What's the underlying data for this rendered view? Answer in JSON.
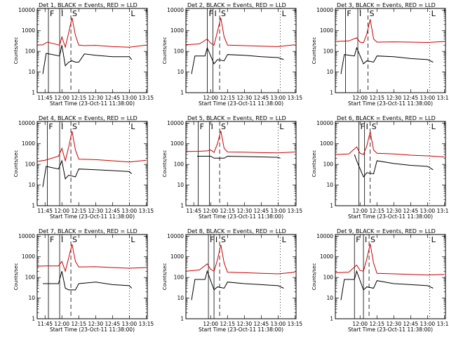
{
  "figure": {
    "ylabel": "Counts/sec",
    "xlabel": "Start Time (23-Oct-11 11:38:00)"
  },
  "colors": {
    "events": "#000000",
    "lld": "#cc0000"
  },
  "chart_data": [
    {
      "type": "line",
      "title": "Det 1, BLACK = Events, RED = LLD",
      "xlabel": "Start Time (23-Oct-11 11:38:00)",
      "ylabel": "Counts/sec",
      "x_ticks": [
        "11:45",
        "12:00",
        "12:15",
        "12:30",
        "12:45",
        "13:00",
        "13:15"
      ],
      "y_ticks": [
        "1",
        "10",
        "100",
        "1000",
        "10000"
      ],
      "ylim": [
        1,
        12000
      ],
      "y_scale": "log",
      "interval_labels": [
        {
          "text": "F",
          "time": "11:48"
        },
        {
          "text": "I",
          "time": "11:58"
        },
        {
          "text": "S",
          "time": "12:08"
        },
        {
          "text": "L",
          "time": "13:00"
        }
      ],
      "series": [
        {
          "name": "Events",
          "x": [
            "11:43",
            "11:46",
            "11:58",
            "12:00",
            "12:03",
            "12:06",
            "12:09",
            "12:12",
            "12:15",
            "12:20",
            "12:30",
            "12:45",
            "13:00",
            "13:02"
          ],
          "y": [
            8,
            80,
            60,
            200,
            20,
            30,
            35,
            30,
            30,
            75,
            65,
            55,
            55,
            40
          ]
        },
        {
          "name": "LLD",
          "x": [
            "11:38",
            "11:43",
            "11:47",
            "11:58",
            "12:00",
            "12:03",
            "12:06",
            "12:09",
            "12:12",
            "12:15",
            "12:20",
            "12:30",
            "12:45",
            "13:00",
            "13:15"
          ],
          "y": [
            200,
            210,
            280,
            200,
            500,
            160,
            800,
            4200,
            600,
            200,
            190,
            195,
            170,
            160,
            200
          ]
        }
      ]
    },
    {
      "type": "line",
      "title": "Det 2, BLACK = Events, RED = LLD",
      "xlabel": "Start Time (23-Oct-11 11:38:00)",
      "ylabel": "Counts/sec",
      "x_ticks": [
        "12:00",
        "12:15",
        "12:30",
        "12:45",
        "13:00",
        "13:15"
      ],
      "y_ticks": [
        "1",
        "10",
        "100",
        "1000",
        "10000"
      ],
      "ylim": [
        1,
        12000
      ],
      "y_scale": "log",
      "interval_labels": [
        {
          "text": "F",
          "time": "11:57"
        },
        {
          "text": "I",
          "time": "12:02"
        },
        {
          "text": "S",
          "time": "12:08"
        },
        {
          "text": "L",
          "time": "13:02"
        }
      ],
      "series": [
        {
          "name": "Events",
          "x": [
            "11:43",
            "11:46",
            "11:55",
            "11:57",
            "12:03",
            "12:06",
            "12:12",
            "12:15",
            "12:30",
            "12:45",
            "13:00",
            "13:05"
          ],
          "y": [
            8,
            60,
            60,
            150,
            25,
            40,
            35,
            70,
            65,
            55,
            50,
            40
          ]
        },
        {
          "name": "LLD",
          "x": [
            "11:38",
            "11:50",
            "11:57",
            "12:00",
            "12:03",
            "12:06",
            "12:09",
            "12:12",
            "12:15",
            "12:30",
            "12:45",
            "13:00",
            "13:15"
          ],
          "y": [
            210,
            230,
            400,
            250,
            200,
            900,
            4200,
            500,
            200,
            190,
            180,
            170,
            210
          ]
        }
      ]
    },
    {
      "type": "line",
      "title": "Det 3, BLACK = Events, RED = LLD",
      "xlabel": "Start Time (23-Oct-11 11:38:00)",
      "ylabel": "Counts/sec",
      "x_ticks": [
        "12:00",
        "12:15",
        "12:30",
        "12:45",
        "13:00",
        "13:15"
      ],
      "y_ticks": [
        "1",
        "10",
        "100",
        "1000",
        "10000"
      ],
      "ylim": [
        1,
        12000
      ],
      "y_scale": "log",
      "interval_labels": [
        {
          "text": "F",
          "time": "11:47"
        },
        {
          "text": "I",
          "time": "11:58"
        },
        {
          "text": "S",
          "time": "12:07"
        },
        {
          "text": "L",
          "time": "13:02"
        }
      ],
      "series": [
        {
          "name": "Events",
          "x": [
            "11:43",
            "11:46",
            "11:55",
            "11:57",
            "12:03",
            "12:06",
            "12:12",
            "12:15",
            "12:30",
            "12:45",
            "13:00",
            "13:05"
          ],
          "y": [
            8,
            70,
            60,
            150,
            25,
            35,
            30,
            60,
            55,
            45,
            40,
            30
          ]
        },
        {
          "name": "LLD",
          "x": [
            "11:38",
            "11:50",
            "11:57",
            "12:00",
            "12:03",
            "12:06",
            "12:09",
            "12:12",
            "12:15",
            "12:30",
            "12:45",
            "13:00",
            "13:15"
          ],
          "y": [
            300,
            320,
            450,
            280,
            260,
            700,
            3600,
            400,
            280,
            290,
            280,
            270,
            300
          ]
        }
      ]
    },
    {
      "type": "line",
      "title": "Det 4, BLACK = Events, RED = LLD",
      "xlabel": "Start Time (23-Oct-11 11:38:00)",
      "ylabel": "Counts/sec",
      "x_ticks": [
        "11:45",
        "12:00",
        "12:15",
        "12:30",
        "12:45",
        "13:00",
        "13:15"
      ],
      "y_ticks": [
        "1",
        "10",
        "100",
        "1000",
        "10000"
      ],
      "ylim": [
        1,
        12000
      ],
      "y_scale": "log",
      "interval_labels": [
        {
          "text": "F",
          "time": "11:47"
        },
        {
          "text": "I",
          "time": "11:58"
        },
        {
          "text": "S",
          "time": "12:08"
        },
        {
          "text": "L",
          "time": "13:00"
        }
      ],
      "series": [
        {
          "name": "Events",
          "x": [
            "11:43",
            "11:46",
            "11:57",
            "12:00",
            "12:03",
            "12:06",
            "12:12",
            "12:15",
            "12:30",
            "12:45",
            "13:00",
            "13:02"
          ],
          "y": [
            8,
            80,
            60,
            150,
            20,
            30,
            25,
            60,
            55,
            50,
            45,
            35
          ]
        },
        {
          "name": "LLD",
          "x": [
            "11:38",
            "11:45",
            "11:57",
            "12:00",
            "12:03",
            "12:06",
            "12:09",
            "12:12",
            "12:15",
            "12:30",
            "12:45",
            "13:00",
            "13:15"
          ],
          "y": [
            140,
            160,
            250,
            600,
            150,
            700,
            4000,
            500,
            180,
            170,
            150,
            130,
            160
          ]
        }
      ]
    },
    {
      "type": "line",
      "title": "Det 5, BLACK = Events, RED = LLD",
      "xlabel": "Start Time (23-Oct-11 11:38:00)",
      "ylabel": "Counts/sec",
      "x_ticks": [
        "11:45",
        "12:00",
        "12:15",
        "12:30",
        "12:45",
        "13:00",
        "13:15"
      ],
      "y_ticks": [
        "1",
        "10",
        "100",
        "1000",
        "10000"
      ],
      "ylim": [
        1,
        12000
      ],
      "y_scale": "log",
      "interval_labels": [
        {
          "text": "F",
          "time": "11:49"
        },
        {
          "text": "I",
          "time": "11:59"
        },
        {
          "text": "S",
          "time": "12:08"
        },
        {
          "text": "L",
          "time": "13:00"
        }
      ],
      "series": [
        {
          "name": "Events",
          "x": [
            "11:48",
            "11:57",
            "12:00",
            "12:03",
            "12:06",
            "12:12",
            "12:15",
            "12:30",
            "12:45",
            "13:00",
            "13:02"
          ],
          "y": [
            250,
            250,
            250,
            200,
            200,
            200,
            250,
            240,
            230,
            220,
            200
          ]
        },
        {
          "name": "LLD",
          "x": [
            "11:38",
            "11:50",
            "11:57",
            "12:00",
            "12:03",
            "12:06",
            "12:09",
            "12:12",
            "12:15",
            "12:30",
            "12:45",
            "13:00",
            "13:15"
          ],
          "y": [
            420,
            430,
            450,
            500,
            380,
            1000,
            4200,
            600,
            400,
            390,
            370,
            360,
            400
          ]
        }
      ]
    },
    {
      "type": "line",
      "title": "Det 6, BLACK = Events, RED = LLD",
      "xlabel": "Start Time (23-Oct-11 11:38:00)",
      "ylabel": "Counts/sec",
      "x_ticks": [
        "12:00",
        "12:15",
        "12:30",
        "12:45",
        "13:00",
        "13:15"
      ],
      "y_ticks": [
        "1",
        "10",
        "100",
        "1000",
        "10000"
      ],
      "ylim": [
        1,
        12000
      ],
      "y_scale": "log",
      "interval_labels": [
        {
          "text": "F",
          "time": "11:59"
        },
        {
          "text": "I",
          "time": "12:04"
        },
        {
          "text": "S",
          "time": "12:09"
        },
        {
          "text": "L",
          "time": "13:02"
        }
      ],
      "series": [
        {
          "name": "Events",
          "x": [
            "11:55",
            "11:57",
            "12:03",
            "12:06",
            "12:12",
            "12:15",
            "12:30",
            "12:45",
            "13:00",
            "13:05"
          ],
          "y": [
            300,
            150,
            25,
            40,
            35,
            150,
            110,
            90,
            80,
            55
          ]
        },
        {
          "name": "LLD",
          "x": [
            "11:38",
            "11:50",
            "11:57",
            "12:00",
            "12:03",
            "12:06",
            "12:09",
            "12:12",
            "12:15",
            "12:30",
            "12:45",
            "13:00",
            "13:15"
          ],
          "y": [
            300,
            320,
            700,
            350,
            300,
            800,
            3900,
            500,
            350,
            320,
            280,
            260,
            230
          ]
        }
      ]
    },
    {
      "type": "line",
      "title": "Det 7, BLACK = Events, RED = LLD",
      "xlabel": "Start Time (23-Oct-11 11:38:00)",
      "ylabel": "Counts/sec",
      "x_ticks": [
        "11:45",
        "12:00",
        "12:15",
        "12:30",
        "12:45",
        "13:00",
        "13:15"
      ],
      "y_ticks": [
        "1",
        "10",
        "100",
        "1000",
        "10000"
      ],
      "ylim": [
        1,
        12000
      ],
      "y_scale": "log",
      "interval_labels": [
        {
          "text": "F",
          "time": "11:48"
        },
        {
          "text": "I",
          "time": "11:58"
        },
        {
          "text": "S",
          "time": "12:08"
        },
        {
          "text": "L",
          "time": "13:00"
        }
      ],
      "series": [
        {
          "name": "Events",
          "x": [
            "11:43",
            "11:46",
            "11:57",
            "12:00",
            "12:03",
            "12:06",
            "12:12",
            "12:15",
            "12:30",
            "12:45",
            "13:00",
            "13:02"
          ],
          "y": [
            50,
            50,
            50,
            200,
            30,
            25,
            25,
            50,
            60,
            45,
            40,
            30
          ]
        },
        {
          "name": "LLD",
          "x": [
            "11:38",
            "11:45",
            "11:57",
            "12:00",
            "12:03",
            "12:06",
            "12:09",
            "12:12",
            "12:15",
            "12:30",
            "12:45",
            "13:00",
            "13:15"
          ],
          "y": [
            350,
            360,
            360,
            600,
            200,
            900,
            4000,
            600,
            320,
            330,
            300,
            280,
            300
          ]
        }
      ]
    },
    {
      "type": "line",
      "title": "Det 8, BLACK = Events, RED = LLD",
      "xlabel": "Start Time (23-Oct-11 11:38:00)",
      "ylabel": "Counts/sec",
      "x_ticks": [
        "12:00",
        "12:15",
        "12:30",
        "12:45",
        "13:00",
        "13:15"
      ],
      "y_ticks": [
        "1",
        "10",
        "100",
        "1000",
        "10000"
      ],
      "ylim": [
        1,
        12000
      ],
      "y_scale": "log",
      "interval_labels": [
        {
          "text": "F",
          "time": "11:58"
        },
        {
          "text": "I",
          "time": "12:03"
        },
        {
          "text": "S",
          "time": "12:08"
        },
        {
          "text": "L",
          "time": "13:02"
        }
      ],
      "series": [
        {
          "name": "Events",
          "x": [
            "11:43",
            "11:46",
            "11:55",
            "11:57",
            "12:03",
            "12:06",
            "12:12",
            "12:15",
            "12:30",
            "12:45",
            "13:00",
            "13:05"
          ],
          "y": [
            8,
            80,
            80,
            200,
            25,
            35,
            30,
            60,
            50,
            45,
            40,
            30
          ]
        },
        {
          "name": "LLD",
          "x": [
            "11:38",
            "11:50",
            "11:57",
            "12:00",
            "12:03",
            "12:06",
            "12:09",
            "12:12",
            "12:15",
            "12:30",
            "12:45",
            "13:00",
            "13:15"
          ],
          "y": [
            200,
            230,
            450,
            250,
            200,
            700,
            3800,
            500,
            180,
            170,
            160,
            150,
            180
          ]
        }
      ]
    },
    {
      "type": "line",
      "title": "Det 9, BLACK = Events, RED = LLD",
      "xlabel": "Start Time (23-Oct-11 11:38:00)",
      "ylabel": "Counts/sec",
      "x_ticks": [
        "12:00",
        "12:15",
        "12:30",
        "12:45",
        "13:00",
        "13:15"
      ],
      "y_ticks": [
        "1",
        "10",
        "100",
        "1000",
        "10000"
      ],
      "ylim": [
        1,
        12000
      ],
      "y_scale": "log",
      "interval_labels": [
        {
          "text": "F",
          "time": "11:55"
        },
        {
          "text": "I",
          "time": "12:03"
        },
        {
          "text": "S",
          "time": "12:08"
        },
        {
          "text": "L",
          "time": "13:02"
        }
      ],
      "series": [
        {
          "name": "Events",
          "x": [
            "11:43",
            "11:46",
            "11:55",
            "11:57",
            "12:03",
            "12:06",
            "12:12",
            "12:15",
            "12:30",
            "12:45",
            "13:00",
            "13:05"
          ],
          "y": [
            8,
            80,
            80,
            200,
            25,
            35,
            30,
            70,
            50,
            45,
            40,
            30
          ]
        },
        {
          "name": "LLD",
          "x": [
            "11:38",
            "11:50",
            "11:57",
            "12:00",
            "12:03",
            "12:06",
            "12:09",
            "12:12",
            "12:15",
            "12:30",
            "12:45",
            "13:00",
            "13:15"
          ],
          "y": [
            170,
            180,
            400,
            220,
            200,
            800,
            4200,
            500,
            160,
            150,
            140,
            130,
            140
          ]
        }
      ]
    }
  ]
}
